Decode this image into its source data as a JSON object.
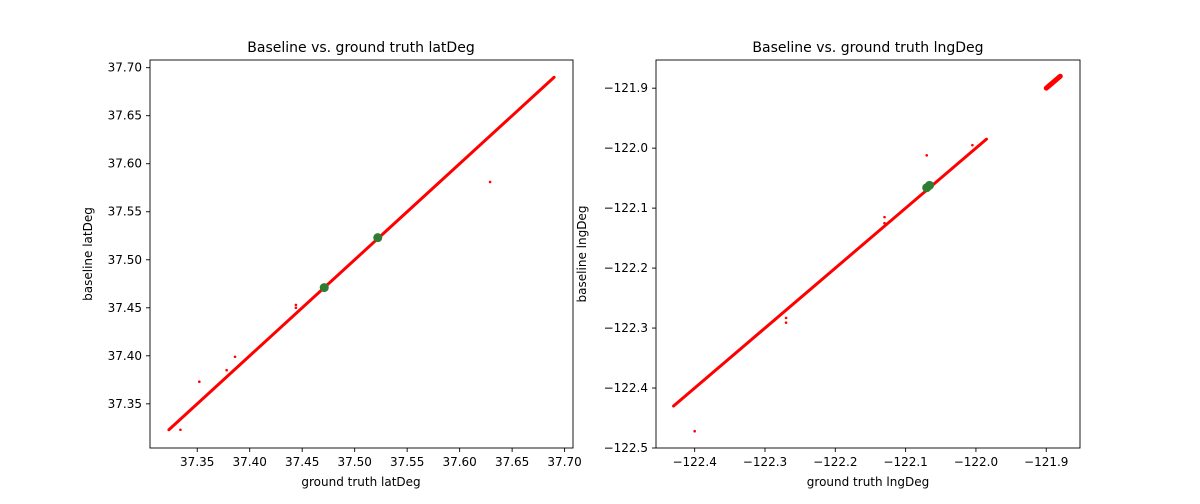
{
  "chart_data": [
    {
      "type": "scatter",
      "title": "Baseline vs. ground truth latDeg",
      "xlabel": "ground truth latDeg",
      "ylabel": "baseline latDeg",
      "xlim": [
        37.305,
        37.708
      ],
      "ylim": [
        37.304,
        37.708
      ],
      "xticks": [
        37.35,
        37.4,
        37.45,
        37.5,
        37.55,
        37.6,
        37.65,
        37.7
      ],
      "yticks": [
        37.35,
        37.4,
        37.45,
        37.5,
        37.55,
        37.6,
        37.65,
        37.7
      ],
      "tick_labels_x": [
        "37.35",
        "37.40",
        "37.45",
        "37.50",
        "37.55",
        "37.60",
        "37.65",
        "37.70"
      ],
      "tick_labels_y": [
        "37.35",
        "37.40",
        "37.45",
        "37.50",
        "37.55",
        "37.60",
        "37.65",
        "37.70"
      ],
      "grid": false,
      "series": [
        {
          "color": "#ff0000",
          "marker": "small-dot",
          "diagonal_line": [
            [
              37.323,
              37.323
            ],
            [
              37.69,
              37.69
            ]
          ],
          "outliers": [
            [
              37.629,
              37.581
            ],
            [
              37.352,
              37.373
            ],
            [
              37.334,
              37.323
            ],
            [
              37.386,
              37.399
            ],
            [
              37.378,
              37.385
            ],
            [
              37.444,
              37.453
            ],
            [
              37.444,
              37.45
            ]
          ]
        },
        {
          "color": "#2e7d32",
          "marker": "circle",
          "points": [
            [
              37.471,
              37.471
            ],
            [
              37.522,
              37.523
            ]
          ]
        }
      ]
    },
    {
      "type": "scatter",
      "title": "Baseline vs. ground truth lngDeg",
      "xlabel": "ground truth lngDeg",
      "ylabel": "baseline lngDeg",
      "xlim": [
        -122.455,
        -121.852
      ],
      "ylim": [
        -122.5,
        -121.853
      ],
      "xticks": [
        -122.4,
        -122.3,
        -122.2,
        -122.1,
        -122.0,
        -121.9
      ],
      "yticks": [
        -122.5,
        -122.4,
        -122.3,
        -122.2,
        -122.1,
        -122.0,
        -121.9
      ],
      "tick_labels_x": [
        "−122.4",
        "−122.3",
        "−122.2",
        "−122.1",
        "−122.0",
        "−121.9"
      ],
      "tick_labels_y": [
        "−122.5",
        "−122.4",
        "−122.3",
        "−122.2",
        "−122.1",
        "−122.0",
        "−121.9"
      ],
      "grid": false,
      "series": [
        {
          "color": "#ff0000",
          "marker": "small-dot",
          "diagonal_line": [
            [
              -122.43,
              -122.43
            ],
            [
              -121.985,
              -121.985
            ]
          ],
          "cluster_line": [
            [
              -121.9,
              -121.9
            ],
            [
              -121.88,
              -121.88
            ]
          ],
          "outliers": [
            [
              -122.4,
              -122.472
            ],
            [
              -122.27,
              -122.283
            ],
            [
              -122.27,
              -122.291
            ],
            [
              -122.07,
              -122.012
            ],
            [
              -122.13,
              -122.115
            ],
            [
              -122.13,
              -122.125
            ],
            [
              -122.005,
              -121.995
            ]
          ]
        },
        {
          "color": "#2e7d32",
          "marker": "circle",
          "points": [
            [
              -122.07,
              -122.066
            ],
            [
              -122.066,
              -122.062
            ]
          ]
        }
      ]
    }
  ]
}
